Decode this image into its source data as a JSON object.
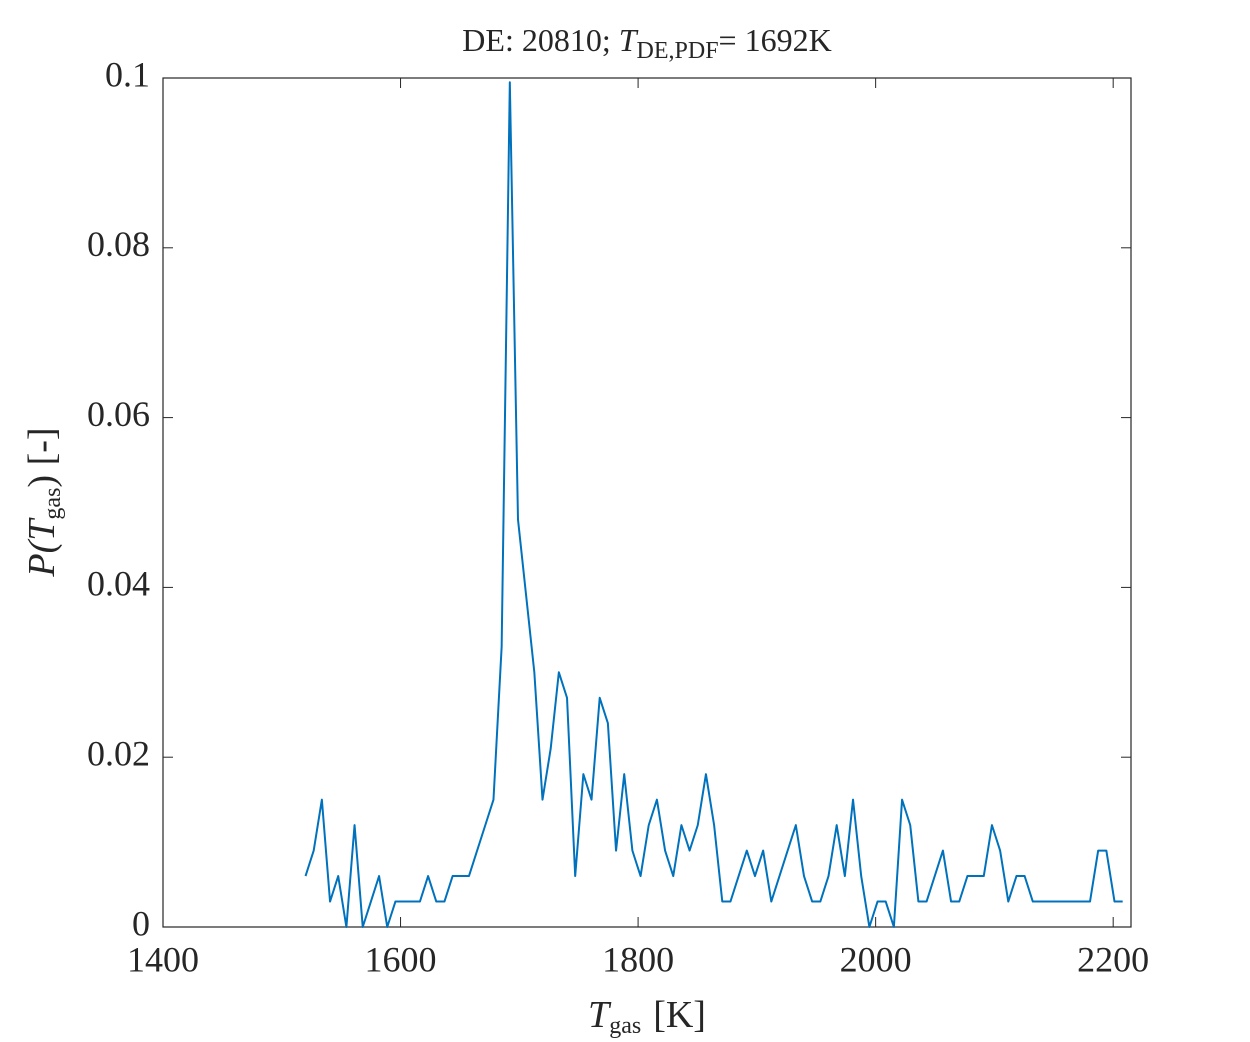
{
  "chart_data": {
    "type": "line",
    "title": [
      "DE: 20810; ",
      "T",
      "DE,PDF",
      "= 1692K"
    ],
    "xlabel": [
      "T",
      "gas",
      "[K]"
    ],
    "ylabel": [
      "P(T",
      "gas",
      ") [-]"
    ],
    "color": "#0072BD",
    "x": [
      1520,
      1526.88,
      1533.76,
      1540.64,
      1547.52,
      1554.4,
      1561.28,
      1568.16,
      1575.04,
      1581.92,
      1588.8,
      1595.68,
      1602.56,
      1609.44,
      1616.32,
      1623.2,
      1630.08,
      1636.96,
      1643.84,
      1650.72,
      1657.6,
      1664.48,
      1671.36,
      1678.24,
      1685.12,
      1692,
      1698.88,
      1705.76,
      1712.64,
      1719.52,
      1726.4,
      1733.28,
      1740.16,
      1747.04,
      1753.92,
      1760.8,
      1767.68,
      1774.56,
      1781.44,
      1788.32,
      1795.2,
      1802.08,
      1808.96,
      1815.84,
      1822.72,
      1829.6,
      1836.48,
      1843.36,
      1850.24,
      1857.12,
      1864,
      1870.88,
      1877.76,
      1884.64,
      1891.52,
      1898.4,
      1905.28,
      1912.16,
      1919.04,
      1925.92,
      1932.8,
      1939.68,
      1946.56,
      1953.44,
      1960.32,
      1967.2,
      1974.08,
      1980.96,
      1987.84,
      1994.72,
      2001.6,
      2008.48,
      2015.36,
      2022.24,
      2029.12,
      2036,
      2042.88,
      2049.76,
      2056.64,
      2063.52,
      2070.4,
      2077.28,
      2084.16,
      2091.04,
      2097.92,
      2104.8,
      2111.68,
      2118.56,
      2125.44,
      2132.32,
      2139.2,
      2146.08,
      2152.96,
      2159.84,
      2166.72,
      2173.6,
      2180.48,
      2187.36,
      2194.24,
      2201.12,
      2208
    ],
    "values": [
      0.006,
      0.009,
      0.015,
      0.003,
      0.006,
      0,
      0.012,
      0,
      0.003,
      0.006,
      0,
      0.003,
      0.003,
      0.003,
      0.003,
      0.006,
      0.003,
      0.003,
      0.006,
      0.006,
      0.006,
      0.009,
      0.012,
      0.015,
      0.033,
      0.0995,
      0.048,
      0.039,
      0.03,
      0.015,
      0.021,
      0.03,
      0.027,
      0.006,
      0.018,
      0.015,
      0.027,
      0.024,
      0.009,
      0.018,
      0.009,
      0.006,
      0.012,
      0.015,
      0.009,
      0.006,
      0.012,
      0.009,
      0.012,
      0.018,
      0.012,
      0.003,
      0.003,
      0.006,
      0.009,
      0.006,
      0.009,
      0.003,
      0.006,
      0.009,
      0.012,
      0.006,
      0.003,
      0.003,
      0.006,
      0.012,
      0.006,
      0.015,
      0.006,
      0,
      0.003,
      0.003,
      0,
      0.015,
      0.012,
      0.003,
      0.003,
      0.006,
      0.009,
      0.003,
      0.003,
      0.006,
      0.006,
      0.006,
      0.012,
      0.009,
      0.003,
      0.006,
      0.006,
      0.003,
      0.003,
      0.003,
      0.003,
      0.003,
      0.003,
      0.003,
      0.003,
      0.009,
      0.009,
      0.003,
      0.003
    ],
    "xlim": [
      1400,
      2215
    ],
    "ylim": [
      0,
      0.1
    ],
    "xticks": [
      1400,
      1600,
      1800,
      2000,
      2200
    ],
    "yticks": [
      0,
      0.02,
      0.04,
      0.06,
      0.08,
      0.1
    ]
  }
}
